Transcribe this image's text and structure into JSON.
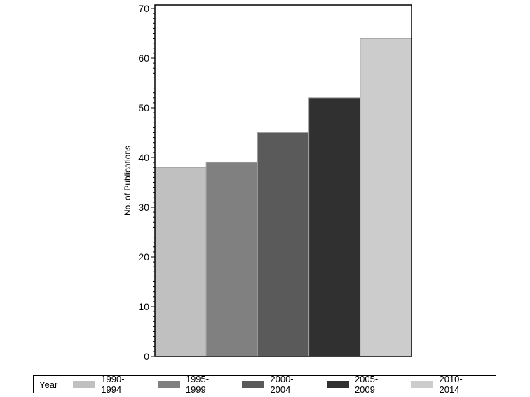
{
  "chart_data": {
    "type": "bar",
    "title": "",
    "xlabel": "",
    "ylabel": "No. of Publications",
    "ylim": [
      0,
      70
    ],
    "yticks": [
      0,
      10,
      20,
      30,
      40,
      50,
      60,
      70
    ],
    "grid": false,
    "legend_position": "bottom",
    "legend_title": "Year",
    "categories": [
      "1990-1994",
      "1995-1999",
      "2000-2004",
      "2005-2009",
      "2010-2014"
    ],
    "values": [
      38,
      39,
      45,
      52,
      64
    ],
    "colors": [
      "#c0c0c0",
      "#808080",
      "#5a5a5a",
      "#303030",
      "#cccccc"
    ]
  }
}
